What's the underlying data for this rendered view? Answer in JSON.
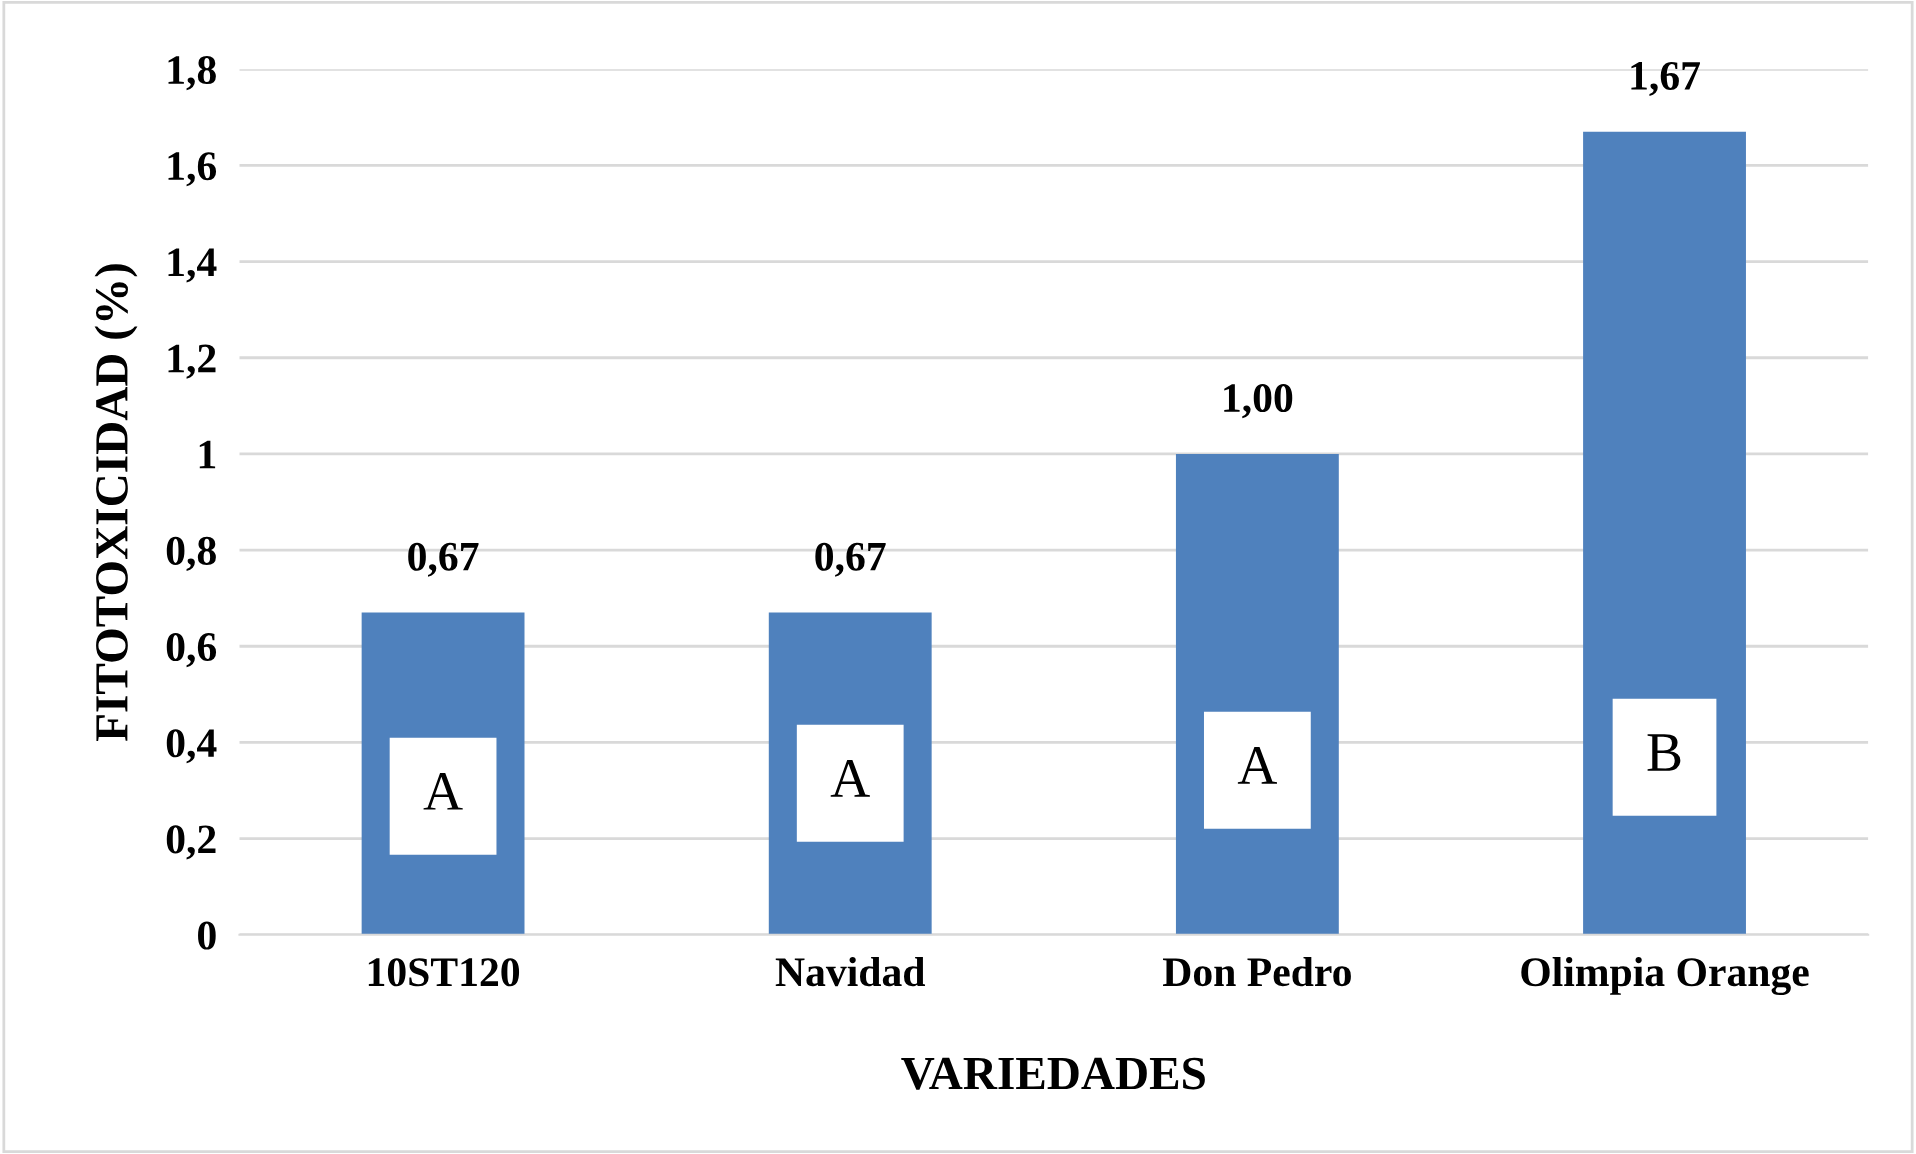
{
  "chart_data": {
    "type": "bar",
    "xlabel": "VARIEDADES",
    "ylabel": "FITOTOXICIDAD (%)",
    "categories": [
      "10ST120",
      "Navidad",
      "Don Pedro",
      "Olimpia Orange"
    ],
    "values": [
      0.67,
      0.67,
      1.0,
      1.67
    ],
    "color": "#4f81bd",
    "value_labels": [
      "0,67",
      "0,67",
      "1,00",
      "1,67"
    ],
    "ylim": [
      0,
      1.8
    ],
    "yticks": [
      0,
      {
        "value": 0.2,
        "label": "0,2"
      },
      {
        "value": 0.4,
        "label": "0,4"
      },
      {
        "value": 0.6,
        "label": "0,6"
      },
      {
        "value": 0.8,
        "label": "0,8"
      },
      1,
      {
        "value": 1.2,
        "label": "1,2"
      },
      {
        "value": 1.4,
        "label": "1,4"
      },
      {
        "value": 1.6,
        "label": "1,6"
      },
      {
        "value": 1.8,
        "label": "1,8"
      }
    ],
    "grid": "y",
    "legend": false,
    "annotations": [
      "A",
      "A",
      "A",
      "B"
    ]
  }
}
